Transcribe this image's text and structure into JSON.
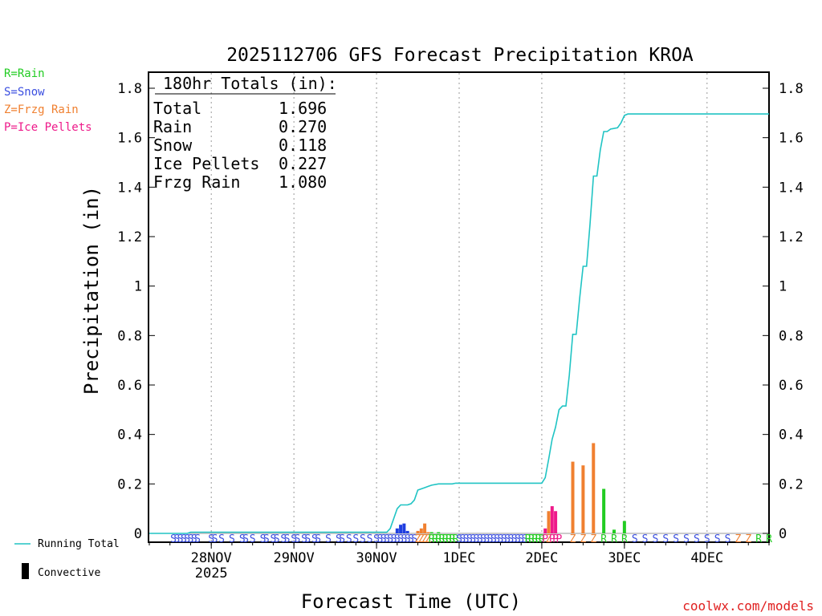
{
  "legend": {
    "items": [
      {
        "text": "R=Rain",
        "color": "#22cc22"
      },
      {
        "text": "S=Snow",
        "color": "#3a4ee0"
      },
      {
        "text": "Z=Frzg Rain",
        "color": "#f08030"
      },
      {
        "text": "P=Ice Pellets",
        "color": "#ee1a8a"
      }
    ],
    "running_total": "Running Total",
    "convective": "Convective"
  },
  "credit": "coolwx.com/models",
  "chart_data": {
    "type": "bar",
    "title": "2025112706 GFS Forecast Precipitation KROA",
    "xlabel": "Forecast Time (UTC)",
    "ylabel": "Precipitation (in)",
    "ylim": [
      0,
      1.85
    ],
    "xlim_hours": [
      0,
      180
    ],
    "y_ticks": [
      0,
      0.2,
      0.4,
      0.6,
      0.8,
      1,
      1.2,
      1.4,
      1.6,
      1.8
    ],
    "y_tick_labels": [
      "0",
      "0.2",
      "0.4",
      "0.6",
      "0.8",
      "1",
      "1.2",
      "1.4",
      "1.6",
      "1.8"
    ],
    "x_ticks": [
      {
        "hour": 18,
        "label": "28NOV",
        "sublabel": "2025"
      },
      {
        "hour": 42,
        "label": "29NOV",
        "sublabel": ""
      },
      {
        "hour": 66,
        "label": "30NOV",
        "sublabel": ""
      },
      {
        "hour": 90,
        "label": "1DEC",
        "sublabel": ""
      },
      {
        "hour": 114,
        "label": "2DEC",
        "sublabel": ""
      },
      {
        "hour": 138,
        "label": "3DEC",
        "sublabel": ""
      },
      {
        "hour": 162,
        "label": "4DEC",
        "sublabel": ""
      }
    ],
    "totals": {
      "header": "180hr Totals (in):",
      "rows": [
        {
          "label": "Total",
          "value": "1.696"
        },
        {
          "label": "Rain",
          "value": "0.270"
        },
        {
          "label": "Snow",
          "value": "0.118"
        },
        {
          "label": "Ice Pellets",
          "value": "0.227"
        },
        {
          "label": "Frzg Rain",
          "value": "1.080"
        }
      ]
    },
    "bar_series": [
      {
        "name": "Snow",
        "color": "#1f3ee0",
        "points": [
          {
            "hour": 72,
            "value": 0.02
          },
          {
            "hour": 73,
            "value": 0.035
          },
          {
            "hour": 74,
            "value": 0.04
          },
          {
            "hour": 75,
            "value": 0.01
          }
        ]
      },
      {
        "name": "Frzg Rain",
        "color": "#f08030",
        "points": [
          {
            "hour": 78,
            "value": 0.01
          },
          {
            "hour": 79,
            "value": 0.02
          },
          {
            "hour": 80,
            "value": 0.04
          },
          {
            "hour": 81,
            "value": 0.005
          },
          {
            "hour": 116,
            "value": 0.09
          },
          {
            "hour": 123,
            "value": 0.29
          },
          {
            "hour": 126,
            "value": 0.275
          },
          {
            "hour": 129,
            "value": 0.365
          }
        ]
      },
      {
        "name": "Ice Pellets",
        "color": "#ee1a8a",
        "points": [
          {
            "hour": 115,
            "value": 0.02
          },
          {
            "hour": 117,
            "value": 0.11
          },
          {
            "hour": 118,
            "value": 0.09
          }
        ]
      },
      {
        "name": "Rain",
        "color": "#22cc22",
        "points": [
          {
            "hour": 82,
            "value": 0.005
          },
          {
            "hour": 84,
            "value": 0.005
          },
          {
            "hour": 132,
            "value": 0.18
          },
          {
            "hour": 135,
            "value": 0.015
          },
          {
            "hour": 138,
            "value": 0.05
          }
        ]
      }
    ],
    "running_total": {
      "name": "Running Total",
      "color": "#20c4c4",
      "points": [
        {
          "hour": 0,
          "value": 0
        },
        {
          "hour": 11,
          "value": 0
        },
        {
          "hour": 12,
          "value": 0.005
        },
        {
          "hour": 69,
          "value": 0.005
        },
        {
          "hour": 70,
          "value": 0.02
        },
        {
          "hour": 71,
          "value": 0.06
        },
        {
          "hour": 72,
          "value": 0.1
        },
        {
          "hour": 73,
          "value": 0.115
        },
        {
          "hour": 75,
          "value": 0.115
        },
        {
          "hour": 76,
          "value": 0.12
        },
        {
          "hour": 77,
          "value": 0.135
        },
        {
          "hour": 78,
          "value": 0.175
        },
        {
          "hour": 79,
          "value": 0.18
        },
        {
          "hour": 80,
          "value": 0.185
        },
        {
          "hour": 81,
          "value": 0.19
        },
        {
          "hour": 82,
          "value": 0.195
        },
        {
          "hour": 84,
          "value": 0.2
        },
        {
          "hour": 88,
          "value": 0.2
        },
        {
          "hour": 89,
          "value": 0.203
        },
        {
          "hour": 114,
          "value": 0.203
        },
        {
          "hour": 115,
          "value": 0.225
        },
        {
          "hour": 116,
          "value": 0.3
        },
        {
          "hour": 117,
          "value": 0.38
        },
        {
          "hour": 118,
          "value": 0.43
        },
        {
          "hour": 119,
          "value": 0.5
        },
        {
          "hour": 120,
          "value": 0.515
        },
        {
          "hour": 121,
          "value": 0.515
        },
        {
          "hour": 122,
          "value": 0.64
        },
        {
          "hour": 123,
          "value": 0.805
        },
        {
          "hour": 124,
          "value": 0.805
        },
        {
          "hour": 125,
          "value": 0.95
        },
        {
          "hour": 126,
          "value": 1.08
        },
        {
          "hour": 127,
          "value": 1.08
        },
        {
          "hour": 128,
          "value": 1.25
        },
        {
          "hour": 129,
          "value": 1.445
        },
        {
          "hour": 130,
          "value": 1.445
        },
        {
          "hour": 131,
          "value": 1.55
        },
        {
          "hour": 132,
          "value": 1.625
        },
        {
          "hour": 133,
          "value": 1.625
        },
        {
          "hour": 134,
          "value": 1.635
        },
        {
          "hour": 136,
          "value": 1.64
        },
        {
          "hour": 137,
          "value": 1.66
        },
        {
          "hour": 138,
          "value": 1.69
        },
        {
          "hour": 139,
          "value": 1.696
        },
        {
          "hour": 180,
          "value": 1.696
        }
      ]
    },
    "ptype_markers": [
      {
        "hour": 7,
        "type": "S"
      },
      {
        "hour": 8,
        "type": "S"
      },
      {
        "hour": 9,
        "type": "S"
      },
      {
        "hour": 10,
        "type": "S"
      },
      {
        "hour": 11,
        "type": "S"
      },
      {
        "hour": 12,
        "type": "S"
      },
      {
        "hour": 13,
        "type": "S"
      },
      {
        "hour": 14,
        "type": "S"
      },
      {
        "hour": 18,
        "type": "S"
      },
      {
        "hour": 19,
        "type": "S"
      },
      {
        "hour": 21,
        "type": "S"
      },
      {
        "hour": 24,
        "type": "S"
      },
      {
        "hour": 27,
        "type": "S"
      },
      {
        "hour": 28,
        "type": "S"
      },
      {
        "hour": 30,
        "type": "S"
      },
      {
        "hour": 33,
        "type": "S"
      },
      {
        "hour": 34,
        "type": "S"
      },
      {
        "hour": 36,
        "type": "S"
      },
      {
        "hour": 37,
        "type": "S"
      },
      {
        "hour": 39,
        "type": "S"
      },
      {
        "hour": 40,
        "type": "S"
      },
      {
        "hour": 42,
        "type": "S"
      },
      {
        "hour": 43,
        "type": "S"
      },
      {
        "hour": 45,
        "type": "S"
      },
      {
        "hour": 46,
        "type": "S"
      },
      {
        "hour": 48,
        "type": "S"
      },
      {
        "hour": 49,
        "type": "S"
      },
      {
        "hour": 52,
        "type": "S"
      },
      {
        "hour": 55,
        "type": "S"
      },
      {
        "hour": 56,
        "type": "S"
      },
      {
        "hour": 58,
        "type": "S"
      },
      {
        "hour": 60,
        "type": "S"
      },
      {
        "hour": 62,
        "type": "S"
      },
      {
        "hour": 64,
        "type": "S"
      },
      {
        "hour": 66,
        "type": "S"
      },
      {
        "hour": 67,
        "type": "S"
      },
      {
        "hour": 68,
        "type": "S"
      },
      {
        "hour": 69,
        "type": "S"
      },
      {
        "hour": 70,
        "type": "S"
      },
      {
        "hour": 71,
        "type": "S"
      },
      {
        "hour": 72,
        "type": "S"
      },
      {
        "hour": 73,
        "type": "S"
      },
      {
        "hour": 74,
        "type": "S"
      },
      {
        "hour": 75,
        "type": "S"
      },
      {
        "hour": 76,
        "type": "S"
      },
      {
        "hour": 77,
        "type": "S"
      },
      {
        "hour": 78,
        "type": "Z"
      },
      {
        "hour": 79,
        "type": "Z"
      },
      {
        "hour": 80,
        "type": "Z"
      },
      {
        "hour": 81,
        "type": "Z"
      },
      {
        "hour": 82,
        "type": "R"
      },
      {
        "hour": 83,
        "type": "R"
      },
      {
        "hour": 84,
        "type": "R"
      },
      {
        "hour": 85,
        "type": "R"
      },
      {
        "hour": 86,
        "type": "R"
      },
      {
        "hour": 87,
        "type": "R"
      },
      {
        "hour": 88,
        "type": "R"
      },
      {
        "hour": 89,
        "type": "R"
      },
      {
        "hour": 90,
        "type": "S"
      },
      {
        "hour": 91,
        "type": "S"
      },
      {
        "hour": 92,
        "type": "S"
      },
      {
        "hour": 93,
        "type": "S"
      },
      {
        "hour": 94,
        "type": "S"
      },
      {
        "hour": 95,
        "type": "S"
      },
      {
        "hour": 96,
        "type": "S"
      },
      {
        "hour": 97,
        "type": "S"
      },
      {
        "hour": 98,
        "type": "S"
      },
      {
        "hour": 99,
        "type": "S"
      },
      {
        "hour": 100,
        "type": "S"
      },
      {
        "hour": 101,
        "type": "S"
      },
      {
        "hour": 102,
        "type": "S"
      },
      {
        "hour": 103,
        "type": "S"
      },
      {
        "hour": 104,
        "type": "S"
      },
      {
        "hour": 105,
        "type": "S"
      },
      {
        "hour": 106,
        "type": "S"
      },
      {
        "hour": 107,
        "type": "S"
      },
      {
        "hour": 108,
        "type": "S"
      },
      {
        "hour": 109,
        "type": "S"
      },
      {
        "hour": 110,
        "type": "R"
      },
      {
        "hour": 111,
        "type": "R"
      },
      {
        "hour": 112,
        "type": "R"
      },
      {
        "hour": 113,
        "type": "R"
      },
      {
        "hour": 114,
        "type": "R"
      },
      {
        "hour": 115,
        "type": "P"
      },
      {
        "hour": 116,
        "type": "Z"
      },
      {
        "hour": 117,
        "type": "P"
      },
      {
        "hour": 118,
        "type": "P"
      },
      {
        "hour": 119,
        "type": "P"
      },
      {
        "hour": 123,
        "type": "Z"
      },
      {
        "hour": 126,
        "type": "Z"
      },
      {
        "hour": 129,
        "type": "Z"
      },
      {
        "hour": 132,
        "type": "R"
      },
      {
        "hour": 135,
        "type": "R"
      },
      {
        "hour": 138,
        "type": "R"
      },
      {
        "hour": 141,
        "type": "S"
      },
      {
        "hour": 144,
        "type": "S"
      },
      {
        "hour": 147,
        "type": "S"
      },
      {
        "hour": 150,
        "type": "S"
      },
      {
        "hour": 153,
        "type": "S"
      },
      {
        "hour": 156,
        "type": "S"
      },
      {
        "hour": 159,
        "type": "S"
      },
      {
        "hour": 162,
        "type": "S"
      },
      {
        "hour": 165,
        "type": "S"
      },
      {
        "hour": 168,
        "type": "S"
      },
      {
        "hour": 171,
        "type": "Z"
      },
      {
        "hour": 174,
        "type": "Z"
      },
      {
        "hour": 177,
        "type": "R"
      },
      {
        "hour": 180,
        "type": "R"
      }
    ],
    "ptype_colors": {
      "S": "#3a4ee0",
      "R": "#22cc22",
      "Z": "#f08030",
      "P": "#ee1a8a"
    }
  }
}
